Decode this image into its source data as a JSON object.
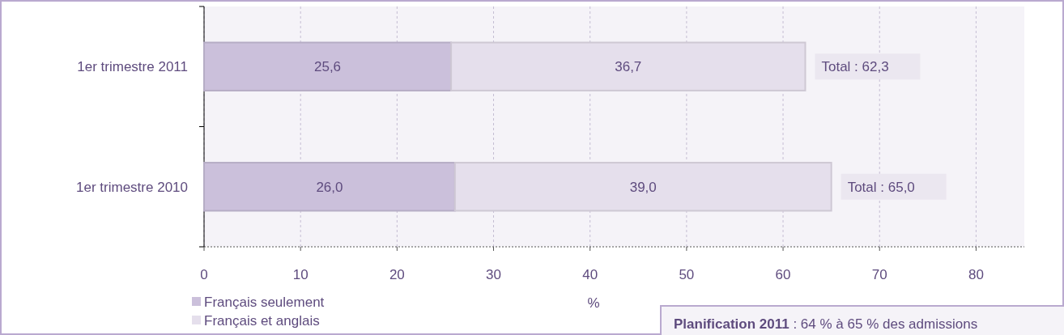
{
  "chart_data": {
    "type": "bar",
    "orientation": "horizontal",
    "stacked": true,
    "xlabel": "%",
    "categories": [
      "1er trimestre 2011",
      "1er trimestre 2010"
    ],
    "series": [
      {
        "name": "Français seulement",
        "color": "#cbc0db",
        "values": [
          25.6,
          26.0
        ],
        "value_labels": [
          "25,6",
          "26,0"
        ]
      },
      {
        "name": "Français et anglais",
        "color": "#e5dfec",
        "values": [
          36.7,
          39.0
        ],
        "value_labels": [
          "36,7",
          "39,0"
        ]
      }
    ],
    "totals": [
      "Total : 62,3",
      "Total : 65,0"
    ],
    "xlim": [
      0,
      85
    ],
    "xticks": [
      0,
      10,
      20,
      30,
      40,
      50,
      60,
      70,
      80
    ],
    "grid": "x",
    "legend": "bottom left",
    "annotations": [
      "Planification 2011 : 64 % à 65 % des admissions"
    ]
  }
}
